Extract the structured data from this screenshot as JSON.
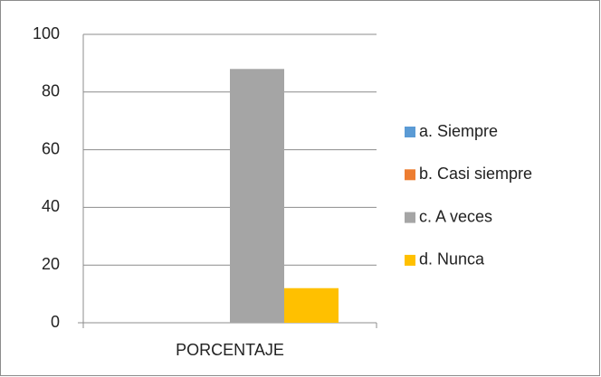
{
  "chart_data": {
    "type": "bar",
    "categories": [
      "PORCENTAJE"
    ],
    "series": [
      {
        "name": "a. Siempre",
        "color": "#5b9bd5",
        "values": [
          0
        ]
      },
      {
        "name": "b. Casi siempre",
        "color": "#ed7d31",
        "values": [
          0
        ]
      },
      {
        "name": "c. A veces",
        "color": "#a5a5a5",
        "values": [
          88
        ]
      },
      {
        "name": "d. Nunca",
        "color": "#ffc000",
        "values": [
          12
        ]
      }
    ],
    "ylim": [
      0,
      100
    ],
    "yticks": [
      0,
      20,
      40,
      60,
      80,
      100
    ],
    "grid": true,
    "legend": "right"
  }
}
